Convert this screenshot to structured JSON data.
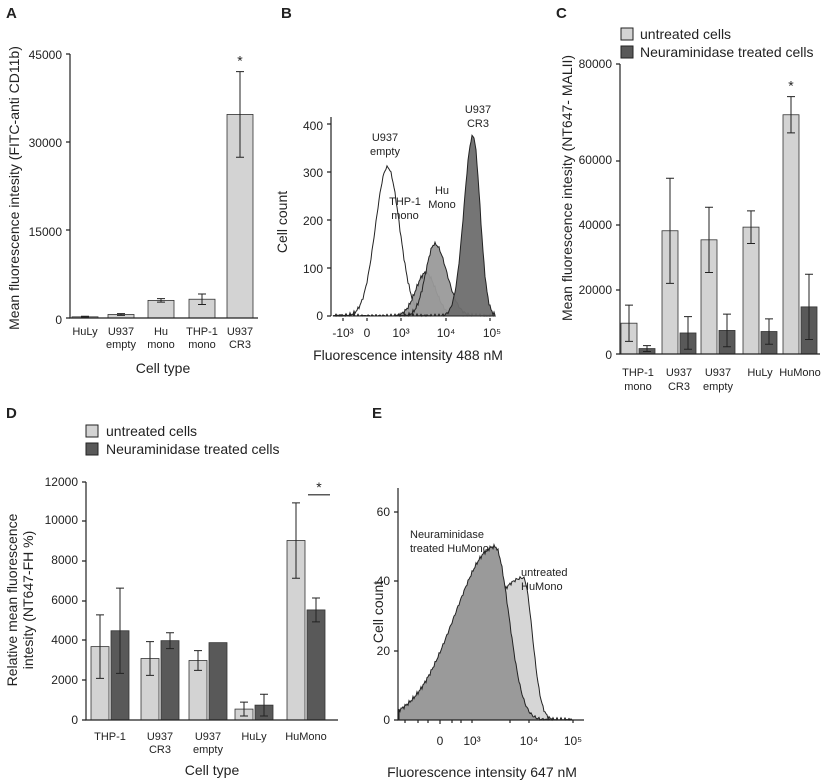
{
  "colors": {
    "light": "#d3d3d3",
    "dark": "#595959",
    "hist_dark": "#6e6e6e",
    "hist_mid": "#9a9a9a",
    "hist_light": "#d6d6d6"
  },
  "panels": {
    "A": {
      "letter": "A"
    },
    "B": {
      "letter": "B"
    },
    "C": {
      "letter": "C"
    },
    "D": {
      "letter": "D"
    },
    "E": {
      "letter": "E"
    }
  },
  "chart_data": [
    {
      "id": "A",
      "type": "bar",
      "ylabel": "Mean fluorescence intesity (FITC-anti CD11b)",
      "xlabel": "Cell type",
      "categories": [
        [
          "HuLy"
        ],
        [
          "U937",
          "empty"
        ],
        [
          "Hu",
          "mono"
        ],
        [
          "THP-1",
          "mono"
        ],
        [
          "U937",
          "CR3"
        ]
      ],
      "values": [
        200,
        600,
        3000,
        3200,
        34700
      ],
      "errors": [
        100,
        150,
        300,
        900,
        7300
      ],
      "ylim": [
        0,
        45000
      ],
      "yticks": [
        "0",
        "15000",
        "30000",
        "45000"
      ],
      "significance": [
        {
          "index": 4,
          "label": "*"
        }
      ]
    },
    {
      "id": "B",
      "type": "histogram",
      "ylabel": "Cell count",
      "xlabel": "Fluorescence intensity 488 nM",
      "ylim": [
        0,
        400
      ],
      "yticks": [
        "0",
        "100",
        "200",
        "300",
        "400"
      ],
      "xticks": [
        "-10³",
        "0",
        "10³",
        "10⁴",
        "10⁵"
      ],
      "series": [
        {
          "name": "U937 empty",
          "label": [
            "U937",
            "empty"
          ],
          "peak_log10": 2.7,
          "peak_count": 310,
          "fill": "none"
        },
        {
          "name": "THP-1 mono",
          "label": [
            "THP-1",
            "mono"
          ],
          "peak_log10": 3.55,
          "peak_count": 90,
          "fill": "mid"
        },
        {
          "name": "Hu Mono",
          "label": [
            "Hu",
            "Mono"
          ],
          "peak_log10": 3.75,
          "peak_count": 150,
          "fill": "mid"
        },
        {
          "name": "U937 CR3",
          "label": [
            "U937",
            "CR3"
          ],
          "peak_log10": 4.6,
          "peak_count": 375,
          "fill": "dark"
        }
      ]
    },
    {
      "id": "C",
      "type": "bar",
      "ylabel": "Mean fluorescence intesity (NT647- MALII)",
      "xlabel": "",
      "categories": [
        [
          "THP-1",
          "mono"
        ],
        [
          "U937",
          "CR3"
        ],
        [
          "U937",
          "empty"
        ],
        [
          "HuLy"
        ],
        [
          "HuMono"
        ]
      ],
      "series": [
        {
          "name": "untreated cells",
          "color": "light",
          "values": [
            8500,
            34000,
            31500,
            35000,
            66000
          ],
          "errors": [
            5000,
            14500,
            9000,
            4500,
            5000
          ]
        },
        {
          "name": "Neuraminidase treated cells",
          "color": "dark",
          "values": [
            1500,
            5800,
            6500,
            6200,
            13000
          ],
          "errors": [
            800,
            4500,
            4500,
            3500,
            9000
          ]
        }
      ],
      "ylim": [
        0,
        80000
      ],
      "yticks": [
        "0",
        "20000",
        "40000",
        "60000",
        "80000"
      ],
      "significance": [
        {
          "index": 4,
          "label": "*"
        }
      ]
    },
    {
      "id": "D",
      "type": "bar",
      "ylabel": "Relative mean fluorescence intesity (NT647-FH %)",
      "xlabel": "Cell type",
      "categories": [
        [
          "THP-1"
        ],
        [
          "U937",
          "CR3"
        ],
        [
          "U937",
          "empty"
        ],
        [
          "HuLy"
        ],
        [
          "HuMono"
        ]
      ],
      "series": [
        {
          "name": "untreated cells",
          "color": "light",
          "values": [
            3700,
            3100,
            3000,
            550,
            9050
          ],
          "errors": [
            1600,
            850,
            500,
            350,
            1900
          ]
        },
        {
          "name": "Neuraminidase treated cells",
          "color": "dark",
          "values": [
            4500,
            4000,
            3900,
            750,
            5550
          ],
          "errors": [
            2150,
            400,
            0,
            550,
            600
          ]
        }
      ],
      "ylim": [
        0,
        12000
      ],
      "yticks": [
        "0",
        "2000",
        "4000",
        "6000",
        "8000",
        "10000",
        "12000"
      ],
      "significance": [
        {
          "index": 4,
          "label": "*"
        }
      ]
    },
    {
      "id": "E",
      "type": "histogram",
      "ylabel": "Cell count",
      "xlabel": "Fluorescence intensity 647 nM",
      "ylim": [
        0,
        65
      ],
      "yticks": [
        "0",
        "20",
        "40",
        "60"
      ],
      "xticks": [
        "0",
        "10³",
        "10⁴",
        "10⁵"
      ],
      "series": [
        {
          "name": "Neuraminidase treated HuMono",
          "label": [
            "Neuraminidase",
            "treated HuMono"
          ],
          "peak_log10": 3.4,
          "peak_count": 50,
          "fill": "mid"
        },
        {
          "name": "untreated HuMono",
          "label": [
            "untreated",
            "HuMono"
          ],
          "peak_log10": 3.9,
          "peak_count": 41,
          "fill": "light"
        }
      ]
    }
  ]
}
